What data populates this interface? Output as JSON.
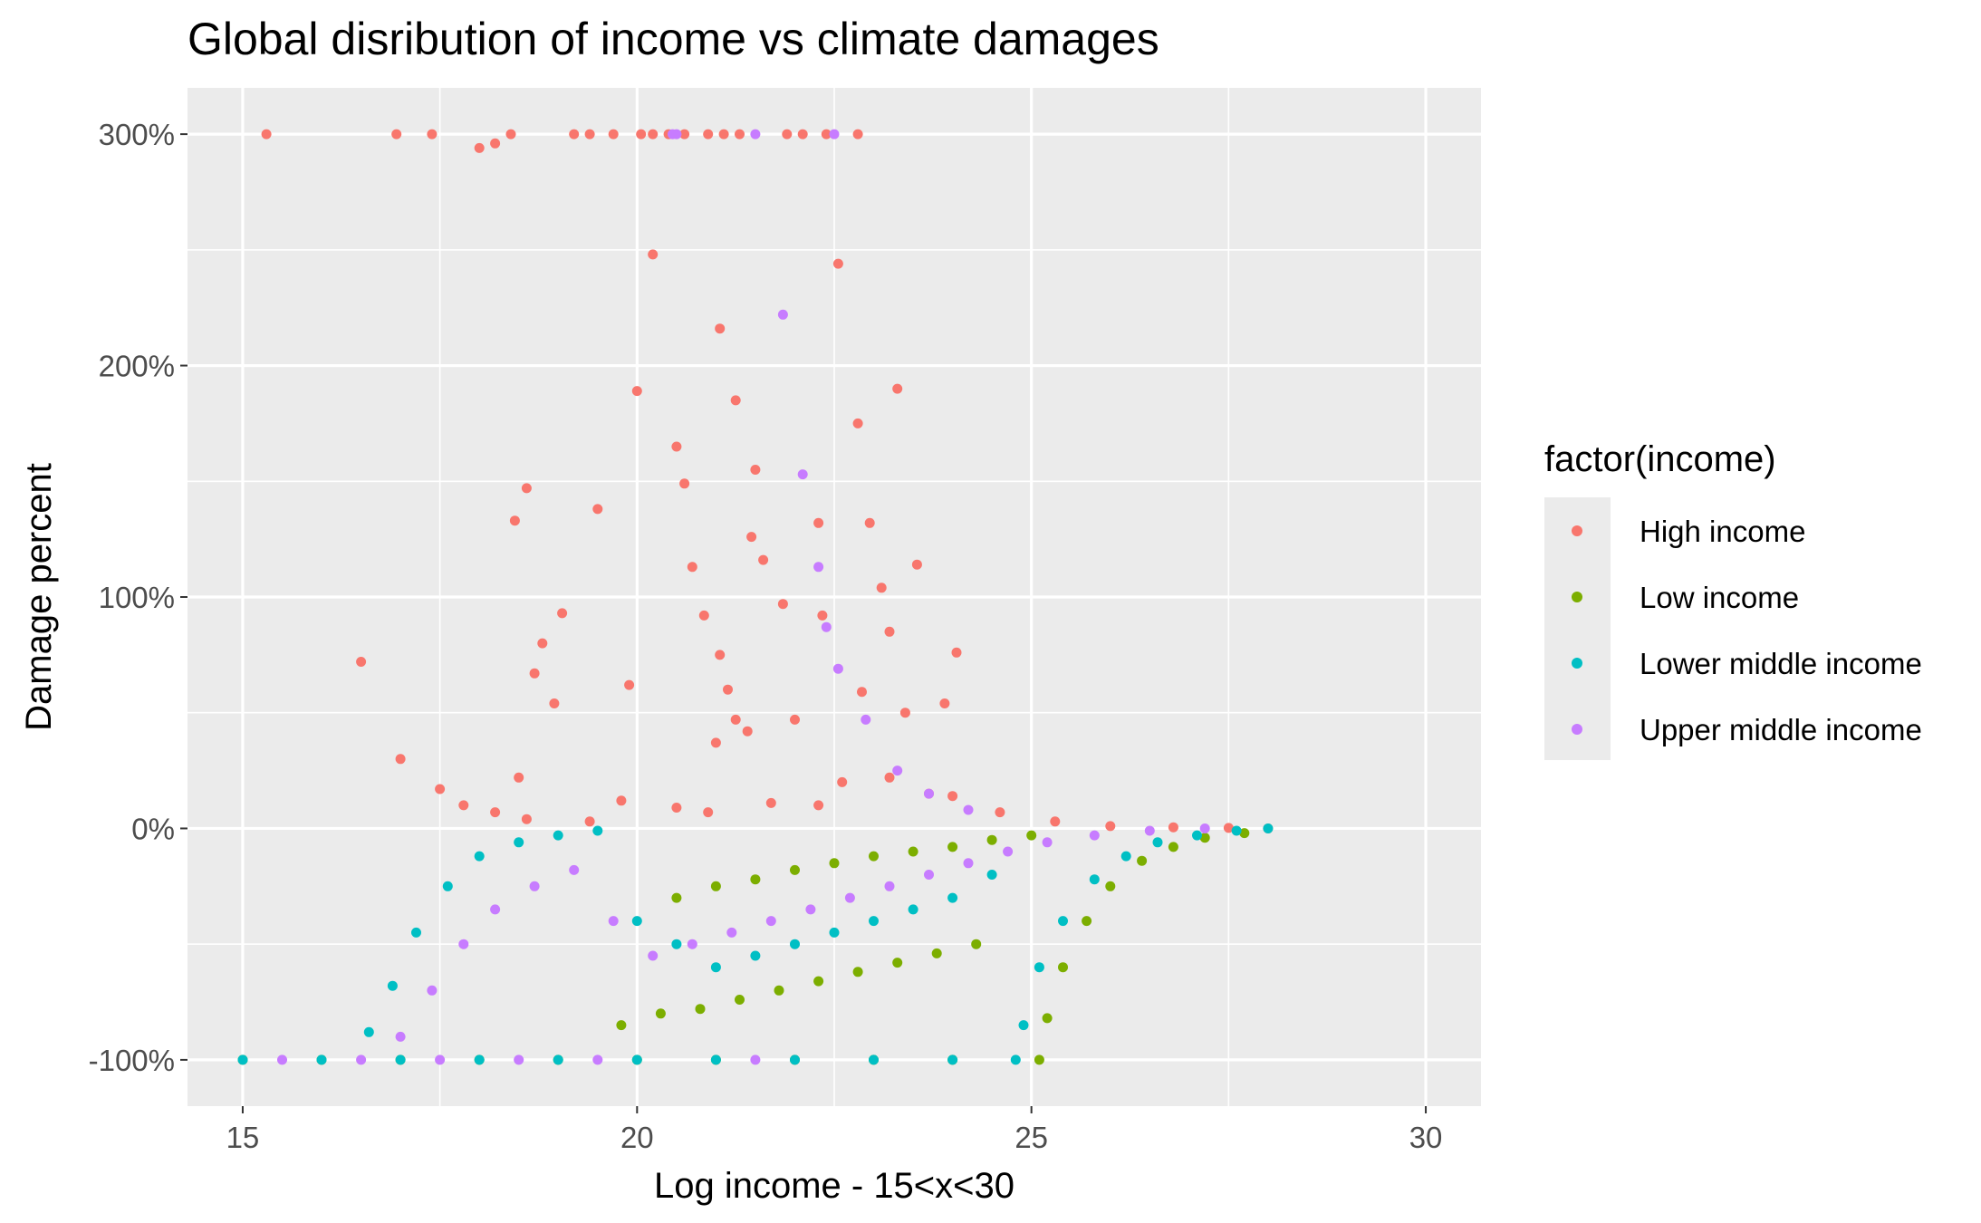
{
  "chart_data": {
    "type": "scatter",
    "title": "Global disribution of income vs climate damages",
    "xlabel": "Log income - 15<x<30",
    "ylabel": "Damage percent",
    "xlim": [
      14.3,
      30.7
    ],
    "ylim": [
      -120,
      320
    ],
    "x_ticks": [
      15,
      20,
      25,
      30
    ],
    "x_tick_labels": [
      "15",
      "20",
      "25",
      "30"
    ],
    "y_ticks": [
      -100,
      0,
      100,
      200,
      300
    ],
    "y_tick_labels": [
      "-100%",
      "0%",
      "100%",
      "200%",
      "300%"
    ],
    "grid": true,
    "legend": {
      "title": "factor(income)",
      "position": "right",
      "entries": [
        "High income",
        "Low income",
        "Lower middle income",
        "Upper middle income"
      ]
    },
    "series": [
      {
        "name": "High income",
        "color": "#F8766D",
        "x": [
          15.3,
          16.95,
          17.4,
          18.0,
          18.2,
          18.4,
          19.2,
          19.4,
          19.7,
          20.05,
          20.2,
          20.4,
          20.6,
          20.9,
          21.1,
          21.3,
          21.9,
          22.1,
          22.4,
          22.8,
          20.2,
          22.55,
          21.05,
          20.0,
          21.25,
          22.8,
          23.3,
          20.5,
          20.6,
          21.5,
          18.6,
          22.3,
          21.45,
          18.45,
          19.5,
          22.95,
          19.05,
          20.7,
          23.55,
          21.6,
          23.1,
          18.8,
          22.35,
          21.85,
          20.85,
          24.05,
          18.7,
          21.05,
          21.15,
          23.2,
          21.25,
          18.95,
          21.0,
          19.9,
          22.0,
          16.5,
          22.85,
          23.4,
          23.9,
          21.4,
          18.5,
          17.0,
          17.5,
          17.8,
          18.2,
          18.6,
          19.4,
          19.8,
          20.5,
          20.9,
          21.7,
          22.3,
          22.6,
          23.2,
          23.7,
          24.0,
          24.6,
          25.3,
          26.0,
          26.8,
          27.5,
          28.0
        ],
        "y": [
          300,
          300,
          300,
          294,
          296,
          300,
          300,
          300,
          300,
          300,
          300,
          300,
          300,
          300,
          300,
          300,
          300,
          300,
          300,
          300,
          248,
          244,
          216,
          189,
          185,
          175,
          190,
          165,
          149,
          155,
          147,
          132,
          126,
          133,
          138,
          132,
          93,
          113,
          114,
          116,
          104,
          80,
          92,
          97,
          92,
          76,
          67,
          75,
          60,
          85,
          47,
          54,
          37,
          62,
          47,
          72,
          59,
          50,
          54,
          42,
          22,
          30,
          17,
          10,
          7,
          4,
          3,
          12,
          9,
          7,
          11,
          10,
          20,
          22,
          15,
          14,
          7,
          3,
          1,
          0.5,
          0.2,
          0
        ],
        "y_label_note": ""
      },
      {
        "name": "Low income",
        "color": "#7CAE00",
        "x": [
          15.0,
          16.0,
          17.0,
          18.0,
          19.0,
          20.0,
          21.0,
          22.0,
          23.0,
          24.0,
          25.1,
          19.8,
          20.3,
          20.8,
          21.3,
          21.8,
          22.3,
          22.8,
          23.3,
          23.8,
          24.3,
          25.2,
          25.4,
          25.7,
          26.0,
          26.4,
          26.8,
          27.2,
          27.7,
          20.5,
          21.0,
          21.5,
          22.0,
          22.5,
          23.0,
          23.5,
          24.0,
          24.5,
          25.0
        ],
        "y": [
          -100,
          -100,
          -100,
          -100,
          -100,
          -100,
          -100,
          -100,
          -100,
          -100,
          -100,
          -85,
          -80,
          -78,
          -74,
          -70,
          -66,
          -62,
          -58,
          -54,
          -50,
          -82,
          -60,
          -40,
          -25,
          -14,
          -8,
          -4,
          -2,
          -30,
          -25,
          -22,
          -18,
          -15,
          -12,
          -10,
          -8,
          -5,
          -3
        ]
      },
      {
        "name": "Lower middle income",
        "color": "#00BFC4",
        "x": [
          15.0,
          16.0,
          17.0,
          18.0,
          19.0,
          20.0,
          21.0,
          22.0,
          23.0,
          24.0,
          24.8,
          16.6,
          16.9,
          17.2,
          17.6,
          18.0,
          18.5,
          19.0,
          19.5,
          20.0,
          20.5,
          21.0,
          21.5,
          22.0,
          22.5,
          23.0,
          23.5,
          24.0,
          24.5,
          24.9,
          25.1,
          25.4,
          25.8,
          26.2,
          26.6,
          27.1,
          27.6,
          28.0
        ],
        "y": [
          -100,
          -100,
          -100,
          -100,
          -100,
          -100,
          -100,
          -100,
          -100,
          -100,
          -100,
          -88,
          -68,
          -45,
          -25,
          -12,
          -6,
          -3,
          -1,
          -40,
          -50,
          -60,
          -55,
          -50,
          -45,
          -40,
          -35,
          -30,
          -20,
          -85,
          -60,
          -40,
          -22,
          -12,
          -6,
          -3,
          -1,
          0
        ]
      },
      {
        "name": "Upper middle income",
        "color": "#C77CFF",
        "x": [
          15.5,
          16.5,
          17.5,
          18.5,
          19.5,
          20.5,
          21.5,
          22.5,
          21.5,
          20.45,
          21.85,
          22.1,
          22.3,
          22.4,
          22.55,
          22.9,
          23.3,
          23.7,
          24.2,
          17.0,
          17.4,
          17.8,
          18.2,
          18.7,
          19.2,
          19.7,
          20.2,
          20.7,
          21.2,
          21.7,
          22.2,
          22.7,
          23.2,
          23.7,
          24.2,
          24.7,
          25.2,
          25.8,
          26.5,
          27.2
        ],
        "y": [
          -100,
          -100,
          -100,
          -100,
          -100,
          300,
          300,
          300,
          -100,
          300,
          222,
          153,
          113,
          87,
          69,
          47,
          25,
          15,
          8,
          -90,
          -70,
          -50,
          -35,
          -25,
          -18,
          -40,
          -55,
          -50,
          -45,
          -40,
          -35,
          -30,
          -25,
          -20,
          -15,
          -10,
          -6,
          -3,
          -1,
          0
        ]
      }
    ]
  }
}
